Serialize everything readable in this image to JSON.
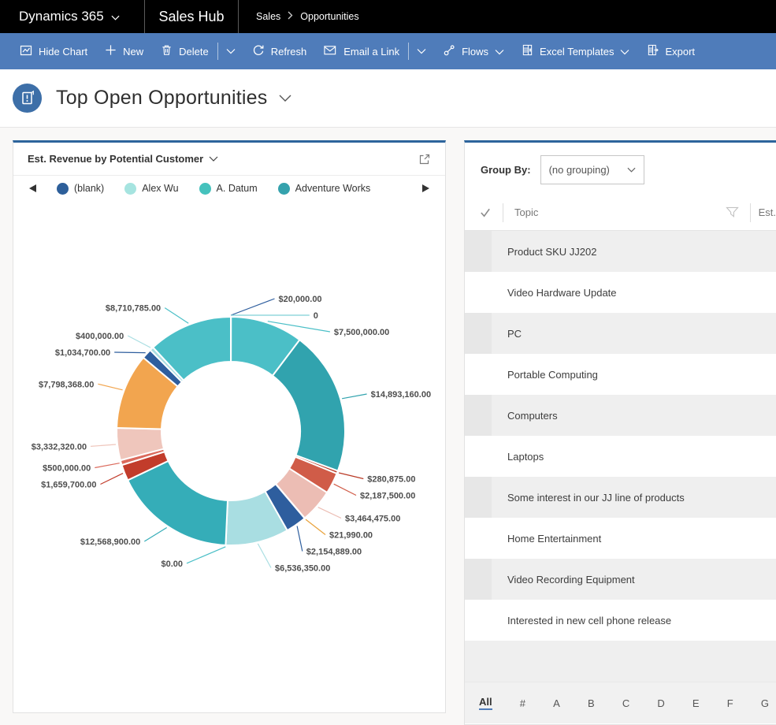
{
  "colors": {
    "topbar": "#000000",
    "cmdbar": "#4f7cba",
    "panel_top_border": "#2d649c",
    "accent": "#4f7cba",
    "title_icon_bg": "#3d6fa8"
  },
  "topbar": {
    "brand": "Dynamics 365",
    "app": "Sales Hub",
    "breadcrumb": [
      "Sales",
      "Opportunities"
    ]
  },
  "toolbar": {
    "hide_chart": "Hide Chart",
    "new": "New",
    "delete": "Delete",
    "refresh": "Refresh",
    "email_a_link": "Email a Link",
    "flows": "Flows",
    "excel_templates": "Excel Templates",
    "export": "Export"
  },
  "page": {
    "title": "Top Open Opportunities"
  },
  "chart_panel": {
    "title": "Est. Revenue by Potential Customer"
  },
  "chart_data": {
    "type": "pie",
    "subtype": "donut",
    "title": "Est. Revenue by Potential Customer",
    "legend_position": "top",
    "legend": [
      {
        "label": "(blank)",
        "color": "#2d5f9a"
      },
      {
        "label": "Alex Wu",
        "color": "#a6e4e0"
      },
      {
        "label": "A. Datum",
        "color": "#45c2bd"
      },
      {
        "label": "Adventure Works",
        "color": "#35a2ad"
      }
    ],
    "slices": [
      {
        "label": "$20,000.00",
        "value": 20000,
        "color": "#2e5e9e"
      },
      {
        "label": "0",
        "value": 0,
        "color": "#7fd0d6"
      },
      {
        "label": "$7,500,000.00",
        "value": 7500000,
        "color": "#4bbfc7"
      },
      {
        "label": "$14,893,160.00",
        "value": 14893160,
        "color": "#31a3ae"
      },
      {
        "label": "$280,875.00",
        "value": 280875,
        "color": "#b93a26"
      },
      {
        "label": "$2,187,500.00",
        "value": 2187500,
        "color": "#d05c48"
      },
      {
        "label": "$3,464,475.00",
        "value": 3464475,
        "color": "#ecbdb4"
      },
      {
        "label": "$21,990.00",
        "value": 21990,
        "color": "#e9a23b"
      },
      {
        "label": "$2,154,889.00",
        "value": 2154889,
        "color": "#2e5e9e"
      },
      {
        "label": "$6,536,350.00",
        "value": 6536350,
        "color": "#a9dee2"
      },
      {
        "label": "$0.00",
        "value": 0,
        "color": "#4bbfc7"
      },
      {
        "label": "$12,568,900.00",
        "value": 12568900,
        "color": "#35adb8"
      },
      {
        "label": "$1,659,700.00",
        "value": 1659700,
        "color": "#c23c2b"
      },
      {
        "label": "$500,000.00",
        "value": 500000,
        "color": "#db6a5c"
      },
      {
        "label": "$3,332,320.00",
        "value": 3332320,
        "color": "#efc6bc"
      },
      {
        "label": "$7,798,368.00",
        "value": 7798368,
        "color": "#f2a54f"
      },
      {
        "label": "$1,034,700.00",
        "value": 1034700,
        "color": "#2e5e9e"
      },
      {
        "label": "$400,000.00",
        "value": 400000,
        "color": "#a9dee2"
      },
      {
        "label": "$8,710,785.00",
        "value": 8710785,
        "color": "#4bbfc7"
      }
    ]
  },
  "grid": {
    "group_by_label": "Group By:",
    "group_by_value": "(no grouping)",
    "columns": {
      "topic": "Topic",
      "est_revenue": "Est. R"
    },
    "rows": [
      "Product SKU JJ202",
      "Video Hardware Update",
      "PC",
      "Portable Computing",
      "Computers",
      "Laptops",
      "Some interest in our JJ line of products",
      "Home Entertainment",
      "Video Recording Equipment",
      "Interested in new cell phone release"
    ],
    "alphabet": [
      "All",
      "#",
      "A",
      "B",
      "C",
      "D",
      "E",
      "F",
      "G"
    ],
    "alphabet_selected": "All"
  }
}
